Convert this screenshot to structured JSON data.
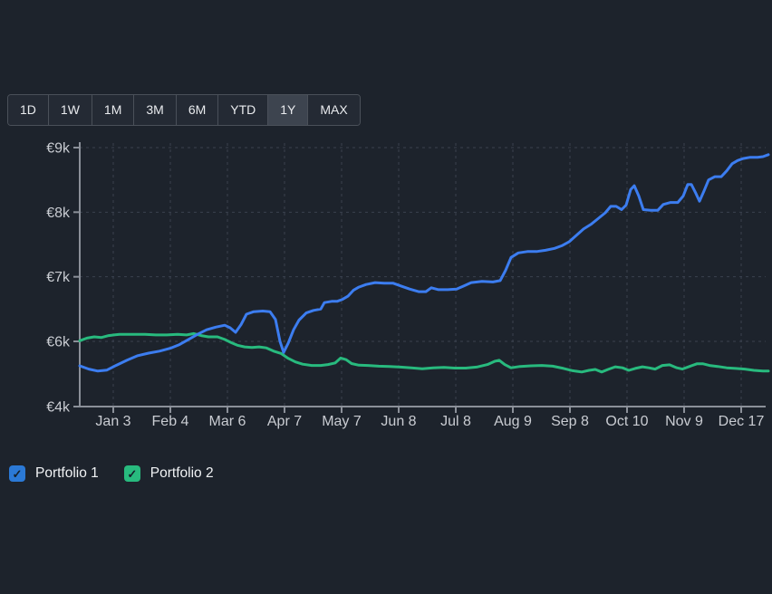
{
  "timeframes": {
    "options": [
      "1D",
      "1W",
      "1M",
      "3M",
      "6M",
      "YTD",
      "1Y",
      "MAX"
    ],
    "active": "1Y"
  },
  "legend": [
    {
      "label": "Portfolio 1",
      "color": "#2b79d6",
      "checked": true
    },
    {
      "label": "Portfolio 2",
      "color": "#28ba7e",
      "checked": true
    }
  ],
  "colors": {
    "background": "#1d232c",
    "gridline": "#3a414e",
    "axis": "#8b9099",
    "tick_text": "#c9ccd2",
    "portfolio1_line": "#3c7df0",
    "portfolio2_line": "#28ba7e"
  },
  "chart_data": {
    "type": "line",
    "currency": "EUR",
    "title": "",
    "xlabel": "",
    "ylabel": "",
    "grid": "dashed",
    "legend_position": "bottom-left",
    "x_ticks": [
      "Jan 3",
      "Feb 4",
      "Mar 6",
      "Apr 7",
      "May 7",
      "Jun 8",
      "Jul 8",
      "Aug 9",
      "Sep 8",
      "Oct 10",
      "Nov 9",
      "Dec 17"
    ],
    "y_ticks": [
      {
        "label": "€9k",
        "value": 9000
      },
      {
        "label": "€8k",
        "value": 8000
      },
      {
        "label": "€7k",
        "value": 7000
      },
      {
        "label": "€6k",
        "value": 6000
      },
      {
        "label": "€4k",
        "value": 4000
      }
    ],
    "series": [
      {
        "name": "Portfolio 1",
        "color": "#3c7df0",
        "points": [
          [
            88,
            5250
          ],
          [
            98,
            5150
          ],
          [
            108,
            5090
          ],
          [
            118,
            5120
          ],
          [
            128,
            5260
          ],
          [
            140,
            5420
          ],
          [
            152,
            5560
          ],
          [
            164,
            5640
          ],
          [
            176,
            5700
          ],
          [
            188,
            5790
          ],
          [
            198,
            5900
          ],
          [
            208,
            6030
          ],
          [
            218,
            6110
          ],
          [
            228,
            6180
          ],
          [
            238,
            6220
          ],
          [
            248,
            6250
          ],
          [
            254,
            6210
          ],
          [
            260,
            6140
          ],
          [
            266,
            6260
          ],
          [
            272,
            6420
          ],
          [
            280,
            6460
          ],
          [
            290,
            6470
          ],
          [
            298,
            6460
          ],
          [
            304,
            6340
          ],
          [
            309,
            6000
          ],
          [
            313,
            5660
          ],
          [
            318,
            5940
          ],
          [
            324,
            6180
          ],
          [
            330,
            6330
          ],
          [
            338,
            6440
          ],
          [
            346,
            6480
          ],
          [
            354,
            6500
          ],
          [
            358,
            6600
          ],
          [
            366,
            6620
          ],
          [
            372,
            6620
          ],
          [
            378,
            6650
          ],
          [
            384,
            6700
          ],
          [
            390,
            6790
          ],
          [
            396,
            6840
          ],
          [
            404,
            6880
          ],
          [
            414,
            6910
          ],
          [
            424,
            6900
          ],
          [
            434,
            6900
          ],
          [
            442,
            6860
          ],
          [
            452,
            6810
          ],
          [
            462,
            6770
          ],
          [
            470,
            6770
          ],
          [
            476,
            6830
          ],
          [
            484,
            6800
          ],
          [
            494,
            6800
          ],
          [
            504,
            6810
          ],
          [
            512,
            6860
          ],
          [
            520,
            6910
          ],
          [
            532,
            6930
          ],
          [
            544,
            6920
          ],
          [
            552,
            6940
          ],
          [
            558,
            7100
          ],
          [
            564,
            7300
          ],
          [
            572,
            7370
          ],
          [
            582,
            7390
          ],
          [
            592,
            7390
          ],
          [
            602,
            7410
          ],
          [
            612,
            7440
          ],
          [
            620,
            7480
          ],
          [
            628,
            7540
          ],
          [
            636,
            7640
          ],
          [
            644,
            7740
          ],
          [
            652,
            7810
          ],
          [
            660,
            7900
          ],
          [
            668,
            7990
          ],
          [
            674,
            8090
          ],
          [
            680,
            8090
          ],
          [
            686,
            8040
          ],
          [
            691,
            8110
          ],
          [
            696,
            8350
          ],
          [
            700,
            8410
          ],
          [
            705,
            8250
          ],
          [
            710,
            8040
          ],
          [
            718,
            8030
          ],
          [
            726,
            8030
          ],
          [
            732,
            8120
          ],
          [
            740,
            8150
          ],
          [
            748,
            8150
          ],
          [
            754,
            8250
          ],
          [
            759,
            8430
          ],
          [
            763,
            8430
          ],
          [
            768,
            8290
          ],
          [
            772,
            8170
          ],
          [
            777,
            8330
          ],
          [
            782,
            8500
          ],
          [
            789,
            8550
          ],
          [
            796,
            8550
          ],
          [
            802,
            8640
          ],
          [
            808,
            8750
          ],
          [
            814,
            8800
          ],
          [
            820,
            8830
          ],
          [
            828,
            8850
          ],
          [
            836,
            8850
          ],
          [
            842,
            8860
          ],
          [
            848,
            8890
          ]
        ]
      },
      {
        "name": "Portfolio 2",
        "color": "#28ba7e",
        "points": [
          [
            88,
            6010
          ],
          [
            96,
            6050
          ],
          [
            104,
            6070
          ],
          [
            112,
            6060
          ],
          [
            120,
            6090
          ],
          [
            132,
            6110
          ],
          [
            146,
            6110
          ],
          [
            160,
            6110
          ],
          [
            172,
            6100
          ],
          [
            184,
            6100
          ],
          [
            196,
            6110
          ],
          [
            206,
            6100
          ],
          [
            214,
            6120
          ],
          [
            222,
            6090
          ],
          [
            230,
            6070
          ],
          [
            240,
            6070
          ],
          [
            248,
            6030
          ],
          [
            256,
            5950
          ],
          [
            262,
            5880
          ],
          [
            270,
            5830
          ],
          [
            278,
            5810
          ],
          [
            286,
            5830
          ],
          [
            294,
            5800
          ],
          [
            302,
            5700
          ],
          [
            310,
            5630
          ],
          [
            318,
            5480
          ],
          [
            326,
            5370
          ],
          [
            334,
            5300
          ],
          [
            344,
            5260
          ],
          [
            354,
            5260
          ],
          [
            362,
            5290
          ],
          [
            370,
            5340
          ],
          [
            376,
            5490
          ],
          [
            382,
            5440
          ],
          [
            388,
            5320
          ],
          [
            396,
            5270
          ],
          [
            406,
            5260
          ],
          [
            418,
            5240
          ],
          [
            430,
            5230
          ],
          [
            442,
            5210
          ],
          [
            454,
            5190
          ],
          [
            466,
            5160
          ],
          [
            478,
            5190
          ],
          [
            490,
            5200
          ],
          [
            502,
            5180
          ],
          [
            514,
            5180
          ],
          [
            526,
            5210
          ],
          [
            538,
            5290
          ],
          [
            546,
            5390
          ],
          [
            551,
            5420
          ],
          [
            557,
            5290
          ],
          [
            564,
            5190
          ],
          [
            574,
            5230
          ],
          [
            586,
            5250
          ],
          [
            598,
            5260
          ],
          [
            610,
            5240
          ],
          [
            622,
            5170
          ],
          [
            632,
            5100
          ],
          [
            642,
            5060
          ],
          [
            650,
            5110
          ],
          [
            657,
            5140
          ],
          [
            664,
            5060
          ],
          [
            671,
            5140
          ],
          [
            679,
            5220
          ],
          [
            687,
            5190
          ],
          [
            694,
            5110
          ],
          [
            701,
            5170
          ],
          [
            709,
            5220
          ],
          [
            716,
            5190
          ],
          [
            723,
            5150
          ],
          [
            731,
            5260
          ],
          [
            739,
            5280
          ],
          [
            747,
            5190
          ],
          [
            753,
            5150
          ],
          [
            761,
            5230
          ],
          [
            769,
            5310
          ],
          [
            776,
            5310
          ],
          [
            783,
            5260
          ],
          [
            792,
            5230
          ],
          [
            802,
            5190
          ],
          [
            812,
            5170
          ],
          [
            822,
            5150
          ],
          [
            832,
            5110
          ],
          [
            842,
            5090
          ],
          [
            848,
            5090
          ]
        ]
      }
    ]
  }
}
